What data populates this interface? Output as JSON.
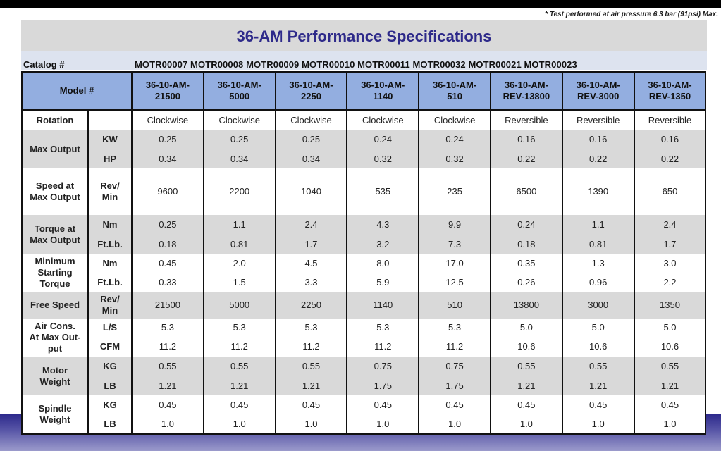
{
  "footnote": "* Test performed at air pressure 6.3 bar (91psi) Max.",
  "title": "36-AM Performance Specifications",
  "catalog": {
    "label": "Catalog #",
    "ids": [
      "MOTR00007",
      "MOTR00008",
      "MOTR00009",
      "MOTR00010",
      "MOTR00011",
      "MOTR00032",
      "MOTR00021",
      "MOTR00023"
    ],
    "ids_text": "MOTR00007 MOTR00008 MOTR00009 MOTR00010 MOTR00011 MOTR00032 MOTR00021 MOTR00023"
  },
  "colors": {
    "title_text": "#2e2a8a",
    "header_bg": "#93aee0",
    "band_gray": "#d9d9d9",
    "catalog_bg": "#dde3ef"
  },
  "table": {
    "model_label": "Model #",
    "models": [
      [
        "36-10-AM-",
        "21500"
      ],
      [
        "36-10-AM-",
        "5000"
      ],
      [
        "36-10-AM-",
        "2250"
      ],
      [
        "36-10-AM-",
        "1140"
      ],
      [
        "36-10-AM-",
        "510"
      ],
      [
        "36-10-AM-",
        "REV-13800"
      ],
      [
        "36-10-AM-",
        "REV-3000"
      ],
      [
        "36-10-AM-",
        "REV-1350"
      ]
    ],
    "rows": {
      "rotation": {
        "label": "Rotation",
        "unit": "",
        "values": [
          "Clockwise",
          "Clockwise",
          "Clockwise",
          "Clockwise",
          "Clockwise",
          "Reversible",
          "Reversible",
          "Reversible"
        ]
      },
      "max_output": {
        "label": "Max Output",
        "units": [
          "KW",
          "HP"
        ],
        "values": [
          [
            "0.25",
            "0.25",
            "0.25",
            "0.24",
            "0.24",
            "0.16",
            "0.16",
            "0.16"
          ],
          [
            "0.34",
            "0.34",
            "0.34",
            "0.32",
            "0.32",
            "0.22",
            "0.22",
            "0.22"
          ]
        ]
      },
      "speed_max": {
        "label_l1": "Speed at",
        "label_l2": "Max Output",
        "unit_l1": "Rev/",
        "unit_l2": "Min",
        "values": [
          "9600",
          "2200",
          "1040",
          "535",
          "235",
          "6500",
          "1390",
          "650"
        ]
      },
      "torque_max": {
        "label_l1": "Torque at",
        "label_l2": "Max Output",
        "units": [
          "Nm",
          "Ft.Lb."
        ],
        "values": [
          [
            "0.25",
            "1.1",
            "2.4",
            "4.3",
            "9.9",
            "0.24",
            "1.1",
            "2.4"
          ],
          [
            "0.18",
            "0.81",
            "1.7",
            "3.2",
            "7.3",
            "0.18",
            "0.81",
            "1.7"
          ]
        ]
      },
      "min_start_torque": {
        "label_l1": "Minimum",
        "label_l2": "Starting",
        "label_l3": "Torque",
        "units": [
          "Nm",
          "Ft.Lb."
        ],
        "values": [
          [
            "0.45",
            "2.0",
            "4.5",
            "8.0",
            "17.0",
            "0.35",
            "1.3",
            "3.0"
          ],
          [
            "0.33",
            "1.5",
            "3.3",
            "5.9",
            "12.5",
            "0.26",
            "0.96",
            "2.2"
          ]
        ]
      },
      "free_speed": {
        "label": "Free Speed",
        "unit_l1": "Rev/",
        "unit_l2": "Min",
        "values": [
          "21500",
          "5000",
          "2250",
          "1140",
          "510",
          "13800",
          "3000",
          "1350"
        ]
      },
      "air_cons": {
        "label_l1": "Air Cons.",
        "label_l2": "At Max Out-",
        "label_l3": "put",
        "units": [
          "L/S",
          "CFM"
        ],
        "values": [
          [
            "5.3",
            "5.3",
            "5.3",
            "5.3",
            "5.3",
            "5.0",
            "5.0",
            "5.0"
          ],
          [
            "11.2",
            "11.2",
            "11.2",
            "11.2",
            "11.2",
            "10.6",
            "10.6",
            "10.6"
          ]
        ]
      },
      "motor_weight": {
        "label_l1": "Motor",
        "label_l2": "Weight",
        "units": [
          "KG",
          "LB"
        ],
        "values": [
          [
            "0.55",
            "0.55",
            "0.55",
            "0.75",
            "0.75",
            "0.55",
            "0.55",
            "0.55"
          ],
          [
            "1.21",
            "1.21",
            "1.21",
            "1.75",
            "1.75",
            "1.21",
            "1.21",
            "1.21"
          ]
        ]
      },
      "spindle_weight": {
        "label_l1": "Spindle",
        "label_l2": "Weight",
        "units": [
          "KG",
          "LB"
        ],
        "values": [
          [
            "0.45",
            "0.45",
            "0.45",
            "0.45",
            "0.45",
            "0.45",
            "0.45",
            "0.45"
          ],
          [
            "1.0",
            "1.0",
            "1.0",
            "1.0",
            "1.0",
            "1.0",
            "1.0",
            "1.0"
          ]
        ]
      }
    }
  }
}
